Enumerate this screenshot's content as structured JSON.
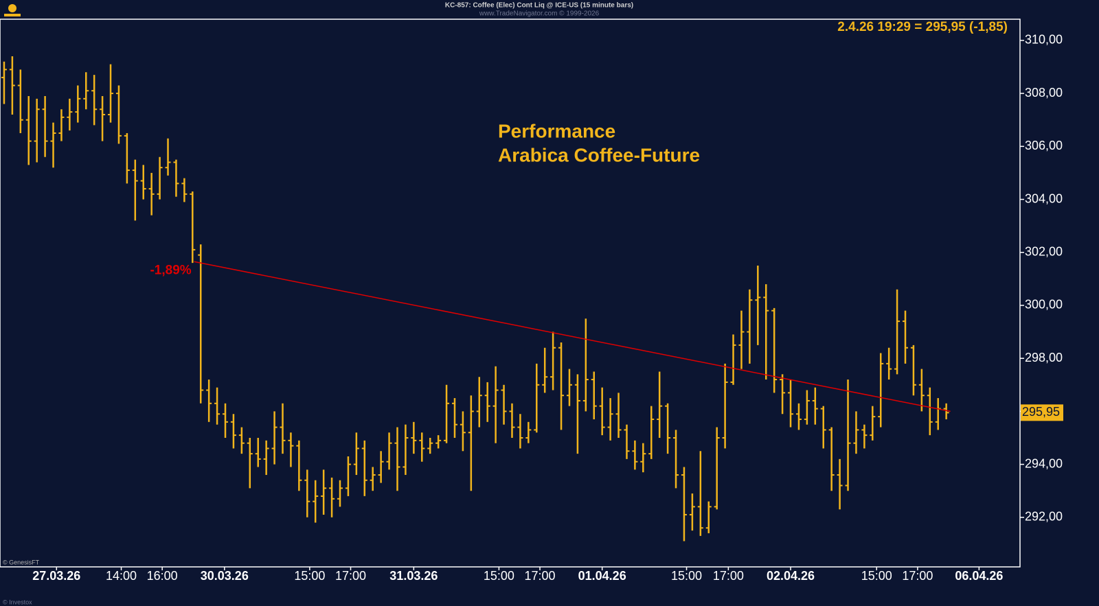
{
  "chart_data": {
    "type": "ohlc",
    "header": "KC-857: Coffee (Elec) Cont Liq @ ICE-US (15 minute bars)",
    "subheader": "www.TradeNavigator.com © 1999-2026",
    "quote": "2.4.26 19:29 = 295,95 (-1,85)",
    "title": [
      "Performance",
      "Arabica Coffee-Future"
    ],
    "footer": [
      "© GenesisFT",
      "© Investox"
    ],
    "color": "#f2b51c",
    "ylim": [
      290.13,
      310.8
    ],
    "yticks": [
      {
        "value": 292,
        "label": "292,00"
      },
      {
        "value": 294,
        "label": "294,00"
      },
      {
        "value": 296,
        "label": "296,00"
      },
      {
        "value": 298,
        "label": "298,00"
      },
      {
        "value": 300,
        "label": "300,00"
      },
      {
        "value": 302,
        "label": "302,00"
      },
      {
        "value": 304,
        "label": "304,00"
      },
      {
        "value": 306,
        "label": "306,00"
      },
      {
        "value": 308,
        "label": "308,00"
      },
      {
        "value": 310,
        "label": "310,00"
      }
    ],
    "xlim": [
      -0.5,
      124
    ],
    "xticks": [
      {
        "value": 6.4,
        "label": "27.03.26"
      },
      {
        "value": 14.3,
        "label": "14:00"
      },
      {
        "value": 19.3,
        "label": "16:00"
      },
      {
        "value": 26.9,
        "label": "30.03.26"
      },
      {
        "value": 37.3,
        "label": "15:00"
      },
      {
        "value": 42.3,
        "label": "17:00"
      },
      {
        "value": 50,
        "label": "31.03.26"
      },
      {
        "value": 60.4,
        "label": "15:00"
      },
      {
        "value": 65.4,
        "label": "17:00"
      },
      {
        "value": 73,
        "label": "01.04.26"
      },
      {
        "value": 83.3,
        "label": "15:00"
      },
      {
        "value": 88.4,
        "label": "17:00"
      },
      {
        "value": 96,
        "label": "02.04.26"
      },
      {
        "value": 106.5,
        "label": "15:00"
      },
      {
        "value": 111.5,
        "label": "17:00"
      },
      {
        "value": 119,
        "label": "06.04.26"
      }
    ],
    "last_price": {
      "value": 295.95,
      "label": "295,95"
    },
    "trendline": {
      "x": [
        23.2,
        115.5
      ],
      "y": [
        301.65,
        296.0
      ],
      "color": "#e00000",
      "label": "-1,89%"
    },
    "ohlc": [
      [
        308.6,
        309.2,
        307.6,
        308.9
      ],
      [
        308.9,
        309.4,
        307.2,
        308.3
      ],
      [
        308.3,
        308.9,
        306.5,
        307.0
      ],
      [
        307.0,
        307.9,
        305.3,
        306.2
      ],
      [
        306.2,
        307.8,
        305.4,
        307.4
      ],
      [
        307.4,
        307.9,
        305.6,
        306.2
      ],
      [
        306.2,
        306.9,
        305.2,
        306.5
      ],
      [
        306.5,
        307.4,
        306.2,
        307.1
      ],
      [
        307.1,
        307.8,
        306.6,
        307.3
      ],
      [
        307.3,
        308.3,
        306.9,
        307.8
      ],
      [
        307.8,
        308.8,
        307.4,
        308.1
      ],
      [
        308.1,
        308.7,
        306.8,
        307.4
      ],
      [
        307.4,
        307.9,
        306.2,
        307.2
      ],
      [
        307.2,
        309.1,
        306.9,
        308.0
      ],
      [
        308.0,
        308.3,
        306.1,
        306.4
      ],
      [
        306.4,
        306.5,
        304.6,
        305.1
      ],
      [
        305.1,
        305.5,
        303.2,
        304.7
      ],
      [
        304.7,
        305.3,
        304.0,
        304.4
      ],
      [
        304.4,
        305.0,
        303.4,
        304.2
      ],
      [
        304.2,
        305.6,
        304.0,
        305.2
      ],
      [
        305.2,
        306.3,
        304.9,
        305.4
      ],
      [
        305.4,
        305.5,
        304.1,
        304.6
      ],
      [
        304.6,
        304.8,
        303.9,
        304.2
      ],
      [
        304.2,
        304.3,
        301.6,
        302.1
      ],
      [
        301.9,
        302.3,
        296.3,
        296.8
      ],
      [
        296.8,
        297.2,
        295.6,
        296.3
      ],
      [
        296.3,
        296.9,
        295.5,
        295.9
      ],
      [
        295.9,
        296.3,
        295.0,
        295.6
      ],
      [
        295.6,
        295.9,
        294.6,
        295.1
      ],
      [
        295.1,
        295.4,
        294.4,
        294.8
      ],
      [
        294.8,
        295.0,
        293.1,
        294.4
      ],
      [
        294.4,
        295.0,
        293.9,
        294.2
      ],
      [
        294.2,
        294.9,
        293.6,
        294.6
      ],
      [
        294.6,
        296.0,
        294.0,
        295.4
      ],
      [
        295.4,
        296.3,
        294.4,
        294.9
      ],
      [
        294.9,
        295.2,
        293.9,
        294.7
      ],
      [
        294.7,
        294.9,
        293.0,
        293.4
      ],
      [
        293.4,
        293.8,
        292.0,
        292.6
      ],
      [
        292.6,
        293.4,
        291.8,
        292.8
      ],
      [
        292.8,
        293.8,
        292.1,
        293.1
      ],
      [
        293.1,
        293.5,
        292.0,
        292.7
      ],
      [
        292.7,
        293.4,
        292.4,
        293.1
      ],
      [
        293.1,
        294.3,
        292.8,
        294.0
      ],
      [
        294.0,
        295.2,
        293.6,
        294.6
      ],
      [
        294.6,
        294.9,
        292.8,
        293.4
      ],
      [
        293.4,
        293.9,
        293.0,
        293.6
      ],
      [
        293.6,
        294.5,
        293.3,
        294.1
      ],
      [
        294.1,
        295.2,
        293.8,
        294.8
      ],
      [
        294.8,
        295.4,
        293.0,
        293.9
      ],
      [
        293.9,
        295.5,
        293.6,
        295.0
      ],
      [
        295.0,
        295.6,
        294.4,
        294.9
      ],
      [
        294.9,
        295.2,
        294.1,
        294.6
      ],
      [
        294.6,
        295.0,
        294.4,
        294.8
      ],
      [
        294.8,
        295.1,
        294.6,
        294.9
      ],
      [
        294.9,
        297.0,
        294.8,
        296.3
      ],
      [
        296.3,
        296.5,
        295.0,
        295.5
      ],
      [
        295.5,
        296.0,
        294.5,
        295.2
      ],
      [
        295.2,
        296.6,
        293.0,
        296.0
      ],
      [
        296.0,
        297.3,
        295.4,
        296.6
      ],
      [
        296.6,
        297.1,
        295.6,
        296.2
      ],
      [
        296.2,
        297.7,
        294.8,
        296.8
      ],
      [
        296.8,
        297.0,
        295.5,
        296.0
      ],
      [
        296.0,
        296.3,
        295.0,
        295.4
      ],
      [
        295.4,
        295.9,
        294.6,
        295.0
      ],
      [
        295.0,
        295.6,
        294.8,
        295.3
      ],
      [
        295.3,
        297.8,
        295.2,
        297.0
      ],
      [
        297.0,
        298.4,
        296.7,
        297.3
      ],
      [
        297.3,
        299.0,
        296.8,
        298.4
      ],
      [
        298.4,
        298.6,
        295.3,
        296.6
      ],
      [
        296.6,
        297.6,
        296.2,
        297.0
      ],
      [
        297.0,
        297.4,
        294.4,
        296.4
      ],
      [
        296.4,
        299.5,
        296.0,
        297.2
      ],
      [
        297.2,
        297.5,
        295.7,
        296.2
      ],
      [
        296.2,
        296.9,
        295.1,
        295.4
      ],
      [
        295.4,
        296.5,
        294.9,
        295.9
      ],
      [
        295.9,
        296.7,
        295.0,
        295.3
      ],
      [
        295.3,
        295.5,
        294.2,
        294.5
      ],
      [
        294.5,
        294.9,
        293.8,
        294.1
      ],
      [
        294.1,
        294.8,
        293.7,
        294.4
      ],
      [
        294.4,
        296.2,
        294.2,
        295.7
      ],
      [
        295.7,
        297.5,
        295.0,
        296.2
      ],
      [
        296.2,
        296.3,
        294.4,
        295.0
      ],
      [
        295.0,
        295.3,
        293.1,
        293.6
      ],
      [
        293.6,
        293.9,
        291.1,
        292.1
      ],
      [
        292.1,
        292.9,
        291.5,
        292.4
      ],
      [
        292.4,
        294.5,
        291.3,
        291.6
      ],
      [
        291.6,
        292.6,
        291.4,
        292.4
      ],
      [
        292.4,
        295.4,
        292.3,
        295.0
      ],
      [
        295.0,
        297.8,
        294.6,
        297.1
      ],
      [
        297.1,
        298.9,
        297.0,
        298.5
      ],
      [
        298.5,
        299.8,
        297.6,
        299.0
      ],
      [
        299.0,
        300.6,
        297.8,
        300.2
      ],
      [
        300.2,
        301.5,
        298.5,
        300.3
      ],
      [
        300.3,
        300.8,
        297.2,
        299.8
      ],
      [
        299.8,
        299.9,
        296.7,
        297.2
      ],
      [
        297.2,
        297.4,
        295.9,
        296.7
      ],
      [
        296.7,
        297.2,
        295.4,
        295.9
      ],
      [
        295.9,
        296.3,
        295.3,
        295.7
      ],
      [
        295.7,
        296.8,
        295.5,
        296.4
      ],
      [
        296.4,
        296.9,
        295.5,
        296.1
      ],
      [
        296.1,
        296.2,
        294.6,
        295.3
      ],
      [
        295.3,
        295.4,
        293.0,
        293.6
      ],
      [
        293.6,
        294.2,
        292.3,
        293.2
      ],
      [
        293.2,
        297.2,
        293.0,
        294.8
      ],
      [
        294.8,
        296.0,
        294.4,
        295.3
      ],
      [
        295.3,
        295.5,
        294.6,
        295.1
      ],
      [
        295.1,
        296.2,
        294.9,
        295.8
      ],
      [
        295.8,
        298.2,
        295.4,
        297.8
      ],
      [
        297.8,
        298.4,
        297.2,
        297.6
      ],
      [
        297.6,
        300.6,
        297.4,
        299.4
      ],
      [
        299.4,
        299.8,
        297.8,
        298.4
      ],
      [
        298.4,
        298.5,
        296.6,
        297.0
      ],
      [
        297.0,
        297.6,
        296.0,
        296.6
      ],
      [
        296.6,
        296.9,
        295.1,
        295.6
      ],
      [
        295.6,
        296.5,
        295.3,
        296.1
      ],
      [
        296.1,
        296.3,
        295.7,
        295.95
      ]
    ]
  }
}
